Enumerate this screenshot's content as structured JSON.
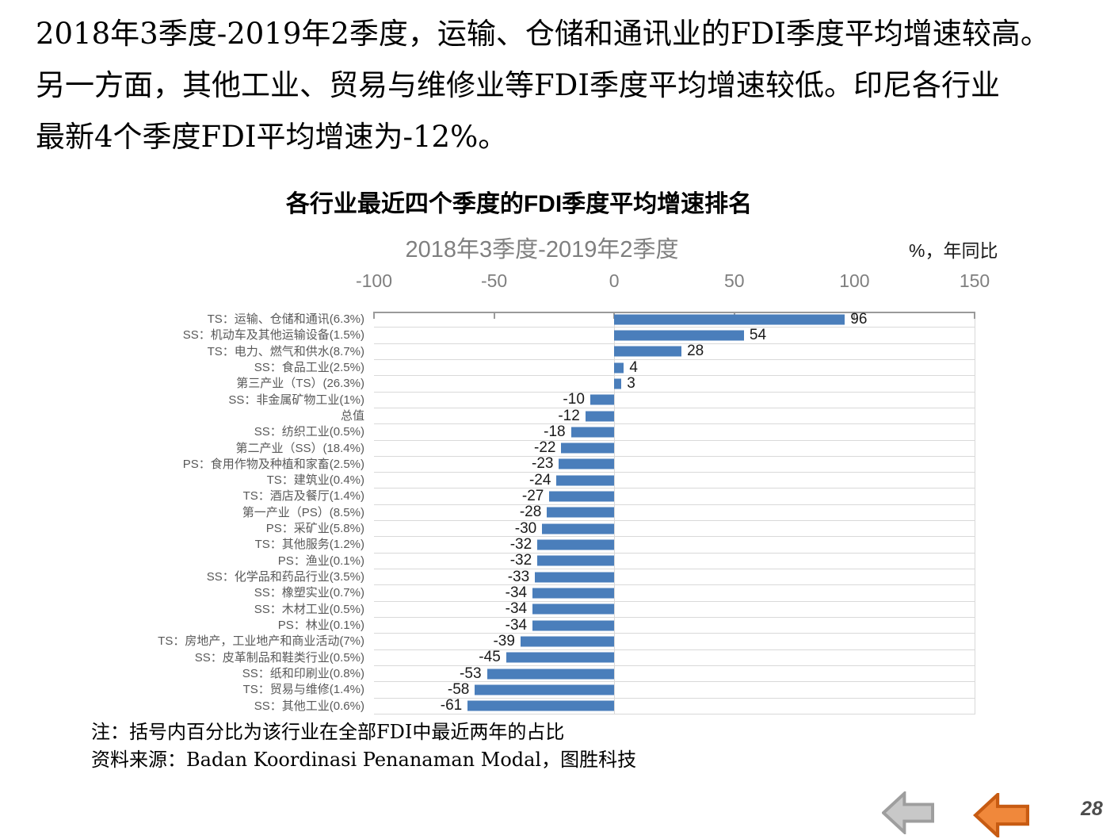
{
  "intro": {
    "lines": [
      "2018年3季度-2019年2季度，运输、仓储和通讯业的FDI季度平均增速较高。",
      "另一方面，其他工业、贸易与维修业等FDI季度平均增速较低。印尼各行业",
      "最新4个季度FDI平均增速为-12%。"
    ]
  },
  "chart": {
    "title": "各行业最近四个季度的FDI季度平均增速排名",
    "subtitle": "2018年3季度-2019年2季度",
    "unit_label": "%，年同比",
    "note": "注：括号内百分比为该行业在全部FDI中最近两年的占比",
    "source": "资料来源：Badan Koordinasi Penanaman Modal，图胜科技"
  },
  "chart_data": {
    "type": "bar",
    "orientation": "horizontal",
    "title": "各行业最近四个季度的FDI季度平均增速排名",
    "subtitle": "2018年3季度-2019年2季度",
    "unit": "%，年同比",
    "categories": [
      "TS：运输、仓储和通讯(6.3%)",
      "SS：机动车及其他运输设备(1.5%)",
      "TS：电力、燃气和供水(8.7%)",
      "SS：食品工业(2.5%)",
      "第三产业（TS）(26.3%)",
      "SS：非金属矿物工业(1%)",
      "总值",
      "SS：纺织工业(0.5%)",
      "第二产业（SS）(18.4%)",
      "PS：食用作物及种植和家畜(2.5%)",
      "TS：建筑业(0.4%)",
      "TS：酒店及餐厅(1.4%)",
      "第一产业（PS）(8.5%)",
      "PS：采矿业(5.8%)",
      "TS：其他服务(1.2%)",
      "PS：渔业(0.1%)",
      "SS：化学品和药品行业(3.5%)",
      "SS：橡塑实业(0.7%)",
      "SS：木材工业(0.5%)",
      "PS：林业(0.1%)",
      "TS：房地产，工业地产和商业活动(7%)",
      "SS：皮革制品和鞋类行业(0.5%)",
      "SS：纸和印刷业(0.8%)",
      "TS：贸易与维修(1.4%)",
      "SS：其他工业(0.6%)"
    ],
    "values": [
      96,
      54,
      28,
      4,
      3,
      -10,
      -12,
      -18,
      -22,
      -23,
      -24,
      -27,
      -28,
      -30,
      -32,
      -32,
      -33,
      -34,
      -34,
      -34,
      -39,
      -45,
      -53,
      -58,
      -61
    ],
    "xlim": [
      -100,
      150
    ],
    "xticks": [
      -100,
      -50,
      0,
      50,
      100,
      150
    ],
    "bar_color": "#4a7ebb",
    "gridline_color": "#d9d9d9",
    "axis_color": "#9a9a9a",
    "grid": true,
    "legend": false
  },
  "nav": {
    "page_number": "28",
    "gray_arrow_fill": "#c8c8c8",
    "gray_arrow_stroke": "#9e9e9e",
    "orange_arrow_fill": "#f0883b",
    "orange_arrow_stroke": "#c75b12"
  }
}
